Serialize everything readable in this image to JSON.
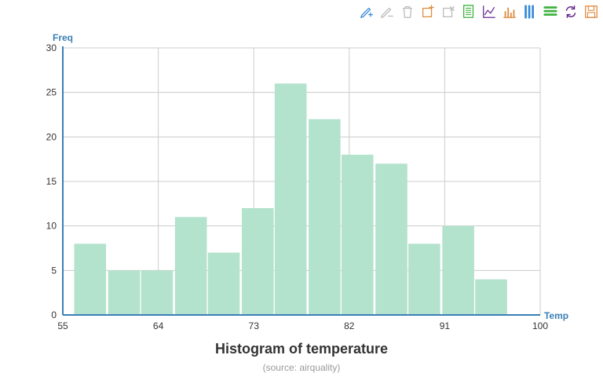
{
  "toolbar": {
    "tools": [
      {
        "name": "mark-icon",
        "color": "#3a8ad6"
      },
      {
        "name": "mark-undo-icon",
        "color": "#bbbbbb"
      },
      {
        "name": "mark-clear-icon",
        "color": "#bbbbbb"
      },
      {
        "name": "zoom-icon",
        "color": "#e08b3e"
      },
      {
        "name": "zoom-reset-icon",
        "color": "#bbbbbb"
      },
      {
        "name": "data-view-icon",
        "color": "#3fb23f"
      },
      {
        "name": "line-chart-icon",
        "color": "#6a2c91"
      },
      {
        "name": "bar-chart-icon",
        "color": "#e08b3e"
      },
      {
        "name": "stack-icon",
        "color": "#3a8ad6"
      },
      {
        "name": "tiled-icon",
        "color": "#3fb23f"
      },
      {
        "name": "restore-icon",
        "color": "#6a2c91"
      },
      {
        "name": "save-image-icon",
        "color": "#e08b3e"
      }
    ]
  },
  "chart_data": {
    "type": "bar",
    "title": "Histogram of temperature",
    "subtitle": "(source: airquality)",
    "xlabel": "Temp",
    "ylabel": "Freq",
    "xlim": [
      55,
      100
    ],
    "ylim": [
      0,
      30
    ],
    "x_ticks": [
      55,
      64,
      73,
      82,
      91,
      100
    ],
    "y_ticks": [
      0,
      5,
      10,
      15,
      20,
      25,
      30
    ],
    "bin_width": 3.15,
    "bins": [
      {
        "start": 56.0,
        "value": 8
      },
      {
        "start": 59.2,
        "value": 5
      },
      {
        "start": 62.3,
        "value": 5
      },
      {
        "start": 65.5,
        "value": 11
      },
      {
        "start": 68.6,
        "value": 7
      },
      {
        "start": 71.8,
        "value": 12
      },
      {
        "start": 74.9,
        "value": 26
      },
      {
        "start": 78.1,
        "value": 22
      },
      {
        "start": 81.2,
        "value": 18
      },
      {
        "start": 84.4,
        "value": 17
      },
      {
        "start": 87.5,
        "value": 8
      },
      {
        "start": 90.7,
        "value": 10
      },
      {
        "start": 93.8,
        "value": 4
      }
    ],
    "bar_color": "#b3e2cd",
    "grid": true,
    "axis_color": "#3a7fb5"
  }
}
